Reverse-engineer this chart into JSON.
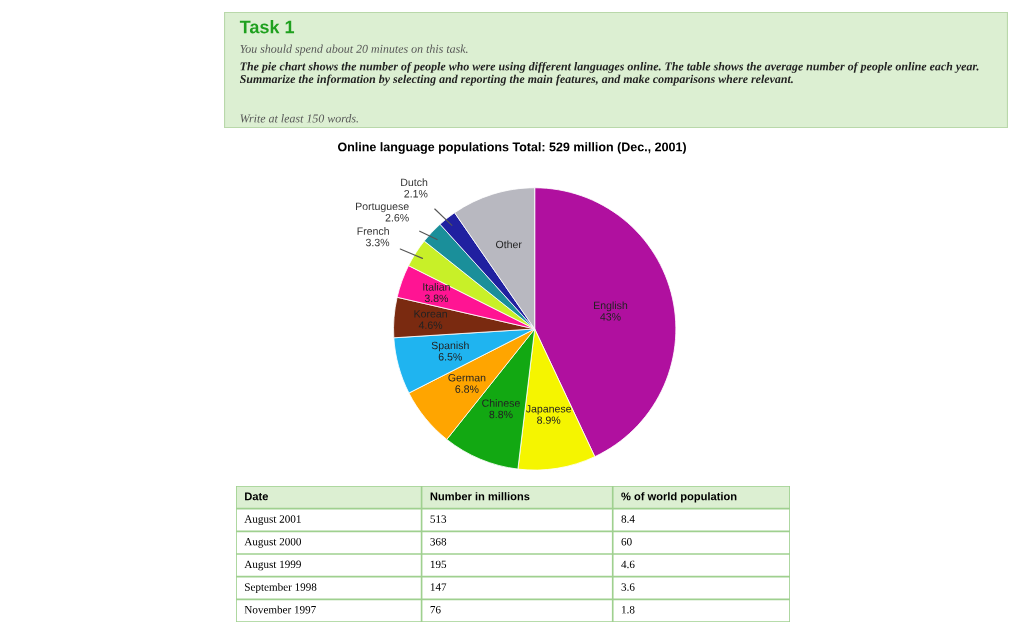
{
  "chart_data": [
    {
      "type": "other",
      "title": "Task 1",
      "annotations": [
        "You should spend about 20 minutes on this task.",
        "The pie chart shows the number of people who were using different languages online. The table shows the average number of people online each year. Summarize the information by selecting and reporting the main features, and make comparisons where relevant.",
        "Write at least 150 words."
      ]
    },
    {
      "type": "pie",
      "title": "Online language populations Total: 529 million (Dec., 2001)",
      "categories": [
        "English",
        "Japanese",
        "Chinese",
        "German",
        "Spanish",
        "Korean",
        "Italian",
        "French",
        "Portuguese",
        "Dutch",
        "Other"
      ],
      "values": [
        43,
        8.9,
        8.8,
        6.8,
        6.5,
        4.6,
        3.8,
        3.3,
        2.6,
        2.1,
        9.6
      ],
      "value_labels": [
        "43%",
        "8.9%",
        "8.8%",
        "6.8%",
        "6.5%",
        "4.6%",
        "3.8%",
        "3.3%",
        "2.6%",
        "2.1%",
        null
      ],
      "colors": [
        "#b0109f",
        "#f5f500",
        "#12a812",
        "#ffa500",
        "#1fb4f0",
        "#7a2a10",
        "#ff1493",
        "#c8f028",
        "#1a8f9a",
        "#2020a0",
        "#b8b8c0"
      ]
    },
    {
      "type": "other",
      "categories": [
        "Date",
        "Number in millions",
        "% of world population"
      ],
      "annotations": [
        "August 2001",
        "513",
        "8.4",
        "August 2000",
        "368",
        "60",
        "August 1999",
        "195",
        "4.6",
        "September 1998",
        "147",
        "3.6",
        "November 1997",
        "76",
        "1.8"
      ]
    }
  ]
}
